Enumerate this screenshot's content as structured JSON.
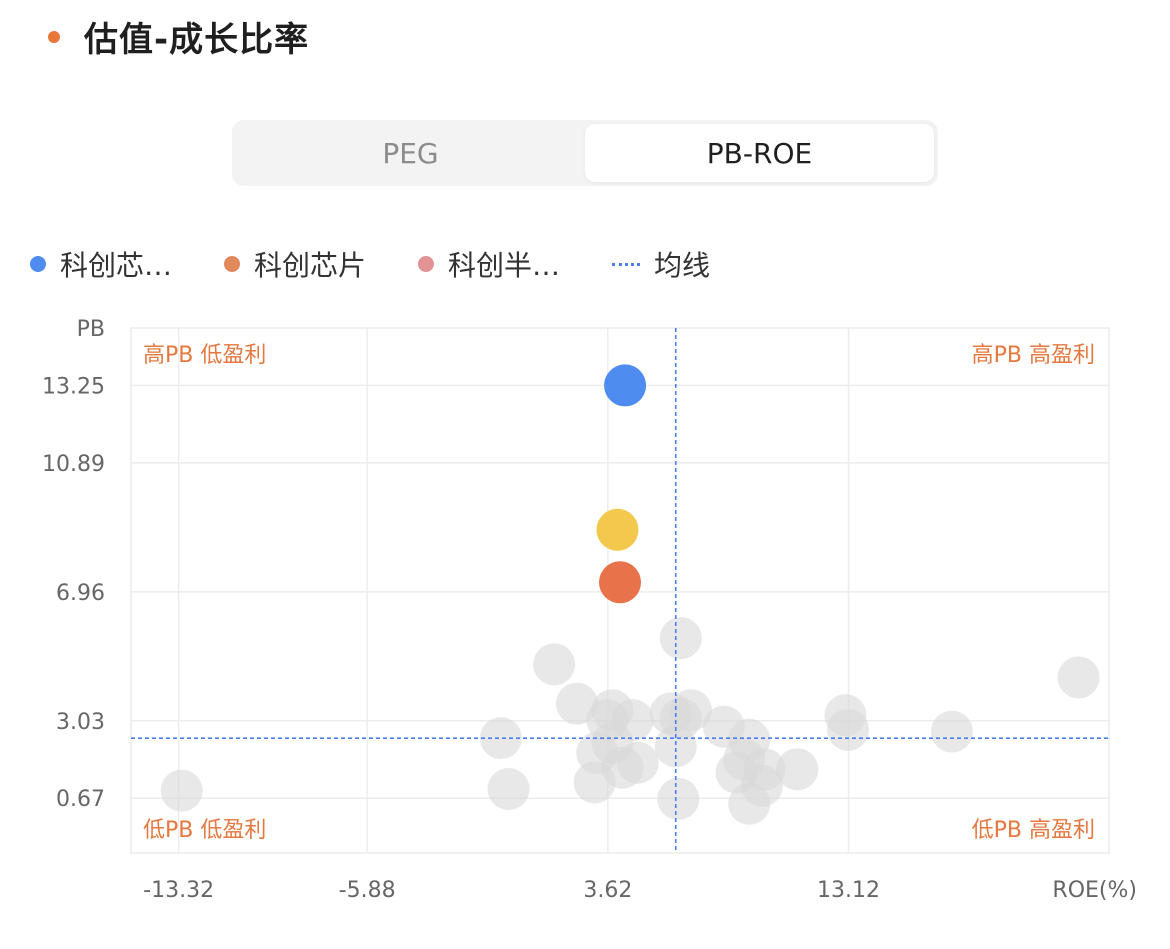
{
  "section": {
    "title": "估值-成长比率",
    "dot_color": "#e8773a"
  },
  "tabs": [
    {
      "label": "PEG"
    },
    {
      "label": "PB-ROE"
    }
  ],
  "legend": [
    {
      "label": "科创芯…",
      "color": "#4f8cf0",
      "type": "dot"
    },
    {
      "label": "科创芯片",
      "color": "#e08a5c",
      "type": "dot"
    },
    {
      "label": "科创半…",
      "color": "#e39394",
      "type": "dot"
    },
    {
      "label": "均线",
      "color": "#4a7ef0",
      "type": "dash"
    }
  ],
  "chart_data": {
    "type": "scatter",
    "ylabel": "PB",
    "xlabel": "ROE(%)",
    "x_ticks": [
      "-13.32",
      "-5.88",
      "3.62",
      "13.12"
    ],
    "y_ticks": [
      "13.25",
      "10.89",
      "6.96",
      "3.03",
      "0.67"
    ],
    "xlim": [
      -15.2,
      23.4
    ],
    "ylim": [
      -1.0,
      15.0
    ],
    "quadrants": {
      "top_left": "高PB 低盈利",
      "top_right": "高PB 高盈利",
      "bottom_left": "低PB 低盈利",
      "bottom_right": "低PB 高盈利"
    },
    "mean_lines": {
      "x": 6.3,
      "y": 2.5
    },
    "highlight_points": [
      {
        "x": 4.3,
        "y": 13.25,
        "color": "#4f8cf0"
      },
      {
        "x": 4.0,
        "y": 8.85,
        "color": "#f2c94c"
      },
      {
        "x": 4.1,
        "y": 7.25,
        "color": "#e8734a"
      }
    ],
    "background_points": [
      {
        "x": 6.5,
        "y": 5.55
      },
      {
        "x": 1.5,
        "y": 4.75
      },
      {
        "x": 22.2,
        "y": 4.35
      },
      {
        "x": 2.4,
        "y": 3.55
      },
      {
        "x": 3.8,
        "y": 3.35
      },
      {
        "x": 6.1,
        "y": 3.25
      },
      {
        "x": 6.9,
        "y": 3.35
      },
      {
        "x": 3.6,
        "y": 3.05
      },
      {
        "x": 4.6,
        "y": 3.05
      },
      {
        "x": 6.5,
        "y": 3.1
      },
      {
        "x": 8.2,
        "y": 2.85
      },
      {
        "x": 13.0,
        "y": 3.2
      },
      {
        "x": 13.1,
        "y": 2.75
      },
      {
        "x": 17.2,
        "y": 2.7
      },
      {
        "x": -0.6,
        "y": 2.5
      },
      {
        "x": 9.2,
        "y": 2.45
      },
      {
        "x": 3.2,
        "y": 2.05
      },
      {
        "x": 3.8,
        "y": 2.35
      },
      {
        "x": 6.3,
        "y": 2.25
      },
      {
        "x": 9.0,
        "y": 1.85
      },
      {
        "x": 4.8,
        "y": 1.75
      },
      {
        "x": 4.2,
        "y": 1.6
      },
      {
        "x": 8.7,
        "y": 1.45
      },
      {
        "x": 9.8,
        "y": 1.55
      },
      {
        "x": 11.1,
        "y": 1.55
      },
      {
        "x": 3.1,
        "y": 1.15
      },
      {
        "x": 9.7,
        "y": 1.05
      },
      {
        "x": -0.3,
        "y": 0.95
      },
      {
        "x": -13.2,
        "y": 0.9
      },
      {
        "x": 6.4,
        "y": 0.65
      },
      {
        "x": 9.2,
        "y": 0.5
      }
    ]
  }
}
